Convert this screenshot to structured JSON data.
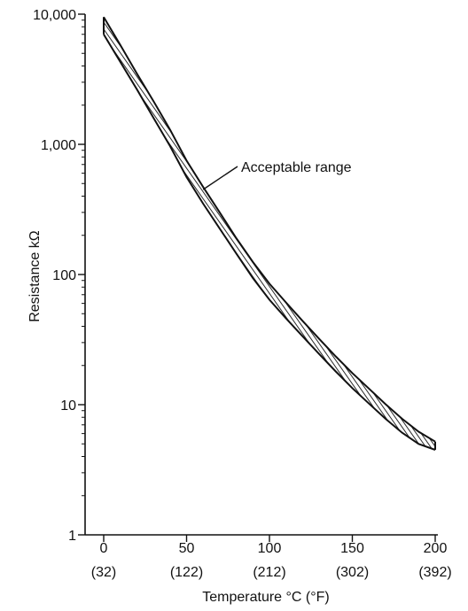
{
  "chart_data": {
    "type": "area",
    "xlabel": "Temperature °C (°F)",
    "ylabel": "Resistance kΩ",
    "xlim": [
      0,
      200
    ],
    "ylim": [
      1,
      10000
    ],
    "y_scale": "log",
    "grid": false,
    "x_ticks": [
      {
        "value": 0,
        "label": "0",
        "sublabel": "(32)"
      },
      {
        "value": 50,
        "label": "50",
        "sublabel": "(122)"
      },
      {
        "value": 100,
        "label": "100",
        "sublabel": "(212)"
      },
      {
        "value": 150,
        "label": "150",
        "sublabel": "(302)"
      },
      {
        "value": 200,
        "label": "200",
        "sublabel": "(392)"
      }
    ],
    "y_ticks": [
      {
        "value": 1,
        "label": "1"
      },
      {
        "value": 10,
        "label": "10"
      },
      {
        "value": 100,
        "label": "100"
      },
      {
        "value": 1000,
        "label": "1,000"
      },
      {
        "value": 10000,
        "label": "10,000"
      }
    ],
    "series": [
      {
        "name": "Acceptable range",
        "x": [
          0,
          10,
          20,
          30,
          40,
          50,
          60,
          70,
          80,
          90,
          100,
          110,
          120,
          130,
          140,
          150,
          160,
          170,
          180,
          190,
          200
        ],
        "y_upper": [
          9500,
          5800,
          3500,
          2150,
          1300,
          750,
          470,
          300,
          190,
          125,
          85,
          61,
          44,
          32,
          23.5,
          17.5,
          13.3,
          10.1,
          7.8,
          6.2,
          5.2
        ],
        "y_lower": [
          7000,
          4300,
          2650,
          1600,
          970,
          560,
          350,
          225,
          145,
          94,
          64,
          46,
          33.5,
          24.5,
          18,
          13.4,
          10.2,
          7.8,
          6.1,
          5.0,
          4.5
        ]
      }
    ],
    "annotations": [
      {
        "text": "Acceptable range",
        "target_x": 60,
        "target_y": 450
      }
    ]
  }
}
